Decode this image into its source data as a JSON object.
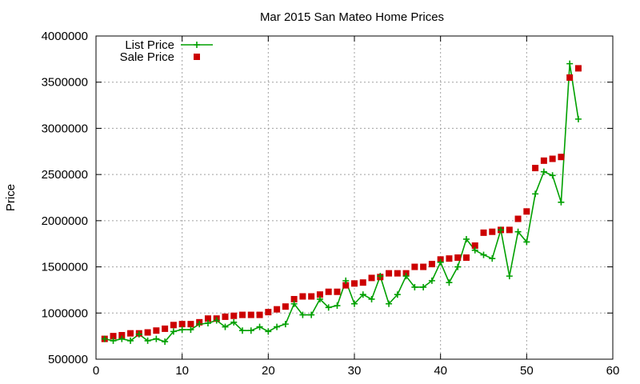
{
  "chart_data": {
    "type": "line",
    "title": "Mar 2015 San Mateo Home Prices",
    "xlabel": "",
    "ylabel": "Price",
    "xlim": [
      0,
      60
    ],
    "ylim": [
      500000,
      4000000
    ],
    "xticks": [
      "0",
      "10",
      "20",
      "30",
      "40",
      "50",
      "60"
    ],
    "yticks": [
      "500000",
      "1000000",
      "1500000",
      "2000000",
      "2500000",
      "3000000",
      "3500000",
      "4000000"
    ],
    "grid": true,
    "legend_position": "top-left",
    "colors": {
      "list": "#00a000",
      "sale": "#cc0000"
    },
    "x": [
      1,
      2,
      3,
      4,
      5,
      6,
      7,
      8,
      9,
      10,
      11,
      12,
      13,
      14,
      15,
      16,
      17,
      18,
      19,
      20,
      21,
      22,
      23,
      24,
      25,
      26,
      27,
      28,
      29,
      30,
      31,
      32,
      33,
      34,
      35,
      36,
      37,
      38,
      39,
      40,
      41,
      42,
      43,
      44,
      45,
      46,
      47,
      48,
      49,
      50,
      51,
      52,
      53,
      54,
      55,
      56
    ],
    "series": [
      {
        "name": "List Price",
        "style": "line-plus",
        "values": [
          720000,
          700000,
          720000,
          700000,
          770000,
          700000,
          720000,
          690000,
          800000,
          820000,
          820000,
          880000,
          890000,
          920000,
          850000,
          900000,
          810000,
          810000,
          850000,
          800000,
          850000,
          880000,
          1100000,
          980000,
          980000,
          1150000,
          1060000,
          1080000,
          1350000,
          1100000,
          1200000,
          1150000,
          1400000,
          1100000,
          1200000,
          1400000,
          1280000,
          1280000,
          1350000,
          1550000,
          1330000,
          1500000,
          1800000,
          1680000,
          1630000,
          1590000,
          1900000,
          1400000,
          1880000,
          1770000,
          2290000,
          2530000,
          2490000,
          2200000,
          3700000,
          3100000
        ]
      },
      {
        "name": "Sale Price",
        "style": "square",
        "values": [
          720000,
          750000,
          760000,
          780000,
          780000,
          790000,
          810000,
          830000,
          870000,
          880000,
          880000,
          900000,
          940000,
          940000,
          960000,
          970000,
          980000,
          980000,
          980000,
          1010000,
          1040000,
          1070000,
          1150000,
          1180000,
          1180000,
          1200000,
          1230000,
          1230000,
          1300000,
          1320000,
          1330000,
          1380000,
          1390000,
          1430000,
          1430000,
          1430000,
          1500000,
          1500000,
          1530000,
          1580000,
          1590000,
          1600000,
          1600000,
          1730000,
          1870000,
          1880000,
          1900000,
          1900000,
          2020000,
          2100000,
          2570000,
          2650000,
          2670000,
          2690000,
          3550000,
          3650000
        ]
      }
    ]
  }
}
